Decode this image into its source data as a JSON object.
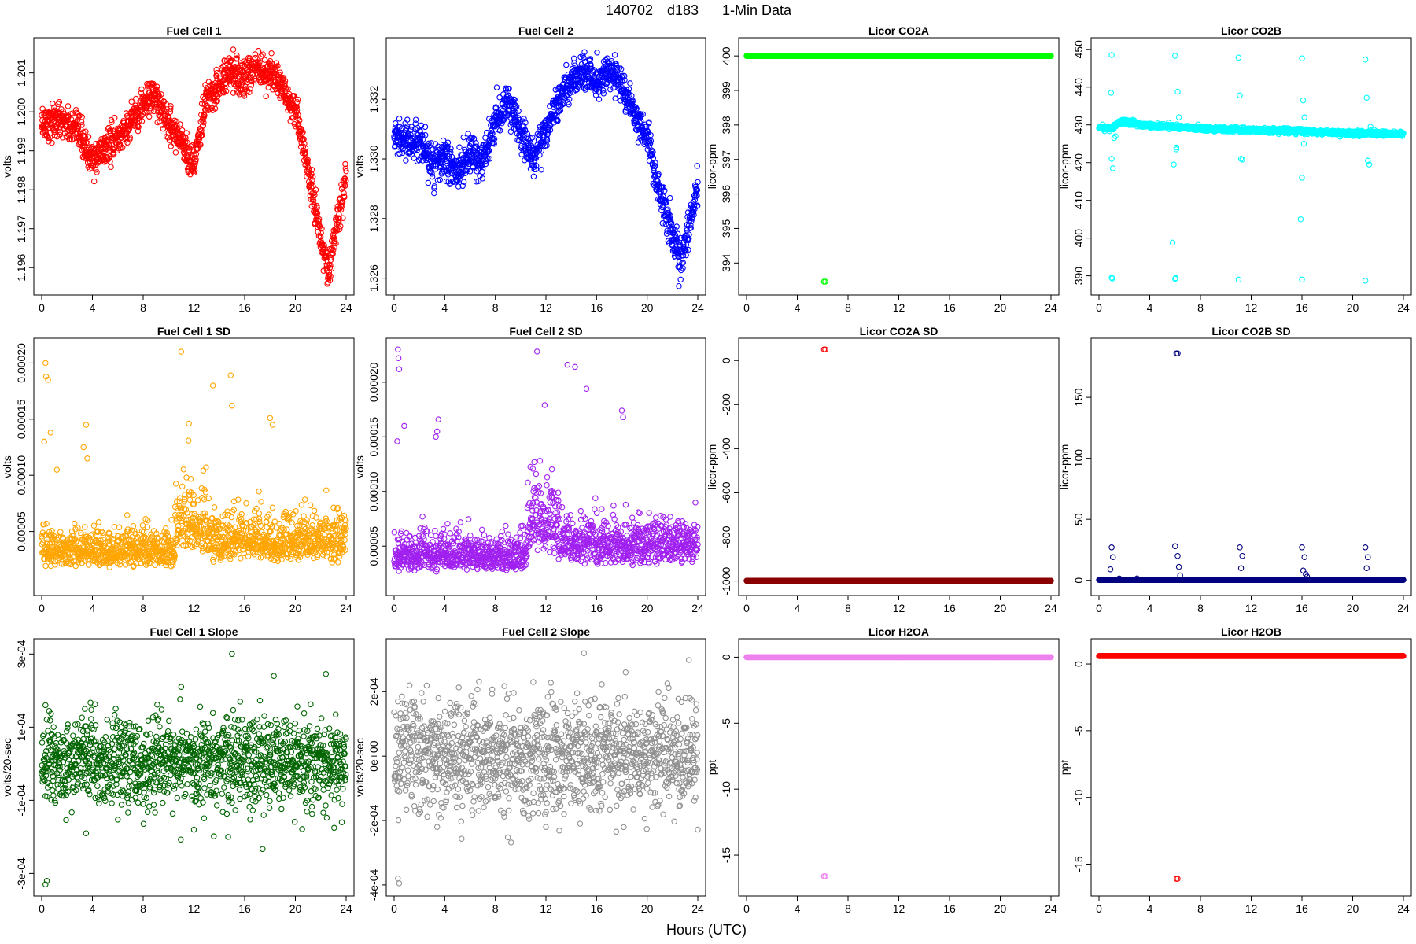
{
  "figure": {
    "title_parts": [
      "140702",
      "d183",
      "1-Min Data"
    ],
    "xlabel": "Hours (UTC)"
  },
  "chart_data": [
    {
      "type": "scatter",
      "title": "Fuel Cell 1",
      "ylabel": "volts",
      "color": "#ff0000",
      "xlim": [
        0,
        24
      ],
      "ylim": [
        1.1955,
        1.2017
      ],
      "xticks": [
        0,
        4,
        8,
        12,
        16,
        20,
        24
      ],
      "xtick_labels": [
        "0",
        "4",
        "8",
        "12",
        "16",
        "20",
        "24"
      ],
      "yticks": [
        1.196,
        1.197,
        1.198,
        1.199,
        1.2,
        1.201
      ],
      "ytick_labels": [
        "1.196",
        "1.197",
        "1.198",
        "1.199",
        "1.200",
        "1.201"
      ],
      "pattern": "walk",
      "trend": [
        [
          0,
          1.1997
        ],
        [
          1.5,
          1.1998
        ],
        [
          3,
          1.1994
        ],
        [
          4,
          1.1987
        ],
        [
          5,
          1.1991
        ],
        [
          6,
          1.1993
        ],
        [
          8,
          1.2002
        ],
        [
          9,
          1.2004
        ],
        [
          10,
          1.1997
        ],
        [
          11,
          1.1993
        ],
        [
          12,
          1.1986
        ],
        [
          13,
          1.2003
        ],
        [
          15,
          1.2011
        ],
        [
          16,
          1.2008
        ],
        [
          17,
          1.2012
        ],
        [
          18,
          1.201
        ],
        [
          19,
          1.2006
        ],
        [
          20,
          1.2
        ],
        [
          21,
          1.1985
        ],
        [
          22,
          1.1968
        ],
        [
          22.6,
          1.1958
        ],
        [
          23.2,
          1.197
        ],
        [
          24,
          1.1983
        ]
      ],
      "noise": 0.00022,
      "outliers": [
        [
          15.1,
          1.2016
        ]
      ]
    },
    {
      "type": "scatter",
      "title": "Fuel Cell 2",
      "ylabel": "volts",
      "color": "#0000ff",
      "xlim": [
        0,
        24
      ],
      "ylim": [
        1.3257,
        1.3338
      ],
      "xticks": [
        0,
        4,
        8,
        12,
        16,
        20,
        24
      ],
      "xtick_labels": [
        "0",
        "4",
        "8",
        "12",
        "16",
        "20",
        "24"
      ],
      "yticks": [
        1.326,
        1.328,
        1.33,
        1.332
      ],
      "ytick_labels": [
        "1.326",
        "1.328",
        "1.330",
        "1.332"
      ],
      "pattern": "walk",
      "trend": [
        [
          0,
          1.3307
        ],
        [
          2,
          1.3305
        ],
        [
          3,
          1.3298
        ],
        [
          4,
          1.33
        ],
        [
          5,
          1.3295
        ],
        [
          6,
          1.3302
        ],
        [
          7,
          1.3298
        ],
        [
          8,
          1.3312
        ],
        [
          9,
          1.332
        ],
        [
          10,
          1.3309
        ],
        [
          11,
          1.33
        ],
        [
          12,
          1.331
        ],
        [
          13,
          1.332
        ],
        [
          14,
          1.3326
        ],
        [
          15,
          1.333
        ],
        [
          16,
          1.3325
        ],
        [
          17,
          1.333
        ],
        [
          18,
          1.3325
        ],
        [
          19,
          1.3315
        ],
        [
          20,
          1.3307
        ],
        [
          21,
          1.3288
        ],
        [
          22,
          1.3275
        ],
        [
          22.7,
          1.3265
        ],
        [
          23.4,
          1.328
        ],
        [
          24,
          1.329
        ]
      ],
      "noise": 0.0003,
      "outliers": []
    },
    {
      "type": "scatter",
      "title": "Licor CO2A",
      "ylabel": "licor-ppm",
      "color": "#00ff00",
      "xlim": [
        0,
        24
      ],
      "ylim": [
        393.3,
        400.3
      ],
      "xticks": [
        0,
        4,
        8,
        12,
        16,
        20,
        24
      ],
      "xtick_labels": [
        "0",
        "4",
        "8",
        "12",
        "16",
        "20",
        "24"
      ],
      "yticks": [
        394,
        395,
        396,
        397,
        398,
        399,
        400
      ],
      "ytick_labels": [
        "394",
        "395",
        "396",
        "397",
        "398",
        "399",
        "400"
      ],
      "pattern": "flat",
      "level": 400,
      "outliers": [
        [
          6.1,
          393.46
        ],
        [
          6.2,
          393.46
        ]
      ]
    },
    {
      "type": "scatter",
      "title": "Licor CO2B",
      "ylabel": "licor-ppm",
      "color": "#00ffff",
      "xlim": [
        0,
        24
      ],
      "ylim": [
        387,
        451
      ],
      "xticks": [
        0,
        4,
        8,
        12,
        16,
        20,
        24
      ],
      "xtick_labels": [
        "0",
        "4",
        "8",
        "12",
        "16",
        "20",
        "24"
      ],
      "yticks": [
        390,
        400,
        410,
        420,
        430,
        440,
        450
      ],
      "ytick_labels": [
        "390",
        "400",
        "410",
        "420",
        "430",
        "440",
        "450"
      ],
      "pattern": "walk",
      "trend": [
        [
          0,
          429.3
        ],
        [
          1,
          429.0
        ],
        [
          1.5,
          430.5
        ],
        [
          2,
          430.8
        ],
        [
          4,
          429.8
        ],
        [
          6,
          429.5
        ],
        [
          8,
          429.0
        ],
        [
          10,
          428.8
        ],
        [
          12,
          428.6
        ],
        [
          14,
          428.5
        ],
        [
          16,
          428.3
        ],
        [
          18,
          428.0
        ],
        [
          20,
          427.8
        ],
        [
          22,
          427.7
        ],
        [
          24,
          427.6
        ]
      ],
      "noise": 0.3,
      "outliers": [
        [
          1.0,
          448.5
        ],
        [
          1.0,
          389.5
        ],
        [
          1.0,
          421
        ],
        [
          1.1,
          418.5
        ],
        [
          1.2,
          426.5
        ],
        [
          1.3,
          427
        ],
        [
          0.95,
          438.5
        ],
        [
          1.05,
          389.3
        ],
        [
          6.0,
          448.3
        ],
        [
          6.0,
          389.2
        ],
        [
          6.2,
          438.8
        ],
        [
          6.1,
          424
        ],
        [
          6.1,
          423.5
        ],
        [
          6.3,
          432
        ],
        [
          5.8,
          398.8
        ],
        [
          5.9,
          419.5
        ],
        [
          6.05,
          389.4
        ],
        [
          11.0,
          447.8
        ],
        [
          11.0,
          389.0
        ],
        [
          11.1,
          437.8
        ],
        [
          11.2,
          421
        ],
        [
          11.3,
          420.8
        ],
        [
          11.4,
          429.5
        ],
        [
          16.0,
          447.6
        ],
        [
          16.0,
          389.0
        ],
        [
          16.1,
          436.5
        ],
        [
          16.2,
          432
        ],
        [
          16.3,
          428.5
        ],
        [
          15.9,
          405
        ],
        [
          16.0,
          416
        ],
        [
          16.15,
          425
        ],
        [
          21.0,
          447.3
        ],
        [
          21.0,
          388.7
        ],
        [
          21.1,
          437.2
        ],
        [
          21.2,
          420.5
        ],
        [
          21.3,
          419.5
        ],
        [
          21.4,
          429.5
        ]
      ]
    },
    {
      "type": "scatter",
      "title": "Fuel Cell 1 SD",
      "ylabel": "volts",
      "color": "#ffa500",
      "xlim": [
        0,
        24
      ],
      "ylim": [
        0.0,
        0.000215
      ],
      "xticks": [
        0,
        4,
        8,
        12,
        16,
        20,
        24
      ],
      "xtick_labels": [
        "0",
        "4",
        "8",
        "12",
        "16",
        "20",
        "24"
      ],
      "yticks": [
        5e-05,
        0.0001,
        0.00015,
        0.0002
      ],
      "ytick_labels": [
        "0.00005",
        "0.00010",
        "0.00015",
        "0.00020"
      ],
      "pattern": "noise",
      "segments": [
        [
          0,
          10.5,
          3.2e-05,
          1.2e-05
        ],
        [
          10.5,
          13,
          5.5e-05,
          2e-05
        ],
        [
          13,
          24,
          4e-05,
          1.5e-05
        ]
      ],
      "outliers": [
        [
          0.3,
          0.0002
        ],
        [
          0.35,
          0.000188
        ],
        [
          0.5,
          0.000185
        ],
        [
          0.2,
          0.00013
        ],
        [
          0.7,
          0.000138
        ],
        [
          1.2,
          0.000105
        ],
        [
          3.5,
          0.000145
        ],
        [
          3.3,
          0.000125
        ],
        [
          3.6,
          0.000115
        ],
        [
          11.0,
          0.00021
        ],
        [
          11.6,
          0.000146
        ],
        [
          13.5,
          0.00018
        ],
        [
          14.9,
          0.000189
        ],
        [
          15.0,
          0.000162
        ],
        [
          18.0,
          0.000151
        ],
        [
          18.2,
          0.000145
        ]
      ]
    },
    {
      "type": "scatter",
      "title": "Fuel Cell 2 SD",
      "ylabel": "volts",
      "color": "#a020f0",
      "xlim": [
        0,
        24
      ],
      "ylim": [
        1.2e-05,
        0.000233
      ],
      "xticks": [
        0,
        4,
        8,
        12,
        16,
        20,
        24
      ],
      "xtick_labels": [
        "0",
        "4",
        "8",
        "12",
        "16",
        "20",
        "24"
      ],
      "yticks": [
        5e-05,
        0.0001,
        0.00015,
        0.0002
      ],
      "ytick_labels": [
        "0.00005",
        "0.00010",
        "0.00015",
        "0.00020"
      ],
      "pattern": "noise",
      "segments": [
        [
          0,
          10.5,
          4.8e-05,
          1.2e-05
        ],
        [
          10.5,
          13,
          7.8e-05,
          2.2e-05
        ],
        [
          13,
          24,
          5.8e-05,
          1.6e-05
        ]
      ],
      "outliers": [
        [
          0.3,
          0.00023
        ],
        [
          0.35,
          0.000222
        ],
        [
          0.4,
          0.000212
        ],
        [
          0.25,
          0.000146
        ],
        [
          0.8,
          0.00016
        ],
        [
          3.5,
          0.000166
        ],
        [
          3.3,
          0.00015
        ],
        [
          3.4,
          0.000155
        ],
        [
          11.3,
          0.000228
        ],
        [
          11.9,
          0.000179
        ],
        [
          13.7,
          0.000216
        ],
        [
          14.3,
          0.000214
        ],
        [
          15.2,
          0.000194
        ],
        [
          18.0,
          0.000174
        ],
        [
          18.1,
          0.000168
        ]
      ]
    },
    {
      "type": "scatter",
      "title": "Licor CO2A SD",
      "ylabel": "licor-ppm",
      "color": "#8b0000",
      "xlim": [
        0,
        24
      ],
      "ylim": [
        -1030,
        65
      ],
      "xticks": [
        0,
        4,
        8,
        12,
        16,
        20,
        24
      ],
      "xtick_labels": [
        "0",
        "4",
        "8",
        "12",
        "16",
        "20",
        "24"
      ],
      "yticks": [
        -1000,
        -800,
        -600,
        -400,
        -200,
        0
      ],
      "ytick_labels": [
        "-1000",
        "-800",
        "-600",
        "-400",
        "-200",
        "0"
      ],
      "pattern": "flat",
      "level": -999,
      "outliers": [
        [
          6.1,
          50
        ],
        [
          6.2,
          50
        ]
      ],
      "outlier_color": "#ff0000"
    },
    {
      "type": "scatter",
      "title": "Licor CO2B SD",
      "ylabel": "licor-ppm",
      "color": "#000080",
      "xlim": [
        0,
        24
      ],
      "ylim": [
        -6,
        192
      ],
      "xticks": [
        0,
        4,
        8,
        12,
        16,
        20,
        24
      ],
      "xtick_labels": [
        "0",
        "4",
        "8",
        "12",
        "16",
        "20",
        "24"
      ],
      "yticks": [
        0,
        50,
        100,
        150
      ],
      "ytick_labels": [
        "0",
        "50",
        "100",
        "150"
      ],
      "pattern": "flat",
      "level": 0.4,
      "outliers": [
        [
          6.1,
          186
        ],
        [
          6.2,
          186
        ],
        [
          1.0,
          27
        ],
        [
          1.1,
          19
        ],
        [
          0.9,
          9
        ],
        [
          6.0,
          28
        ],
        [
          6.2,
          20
        ],
        [
          6.3,
          11
        ],
        [
          6.4,
          4
        ],
        [
          11.1,
          27
        ],
        [
          11.3,
          20
        ],
        [
          11.2,
          10
        ],
        [
          16.0,
          27
        ],
        [
          16.2,
          19
        ],
        [
          16.1,
          8
        ],
        [
          16.3,
          5
        ],
        [
          16.4,
          3
        ],
        [
          21.0,
          27
        ],
        [
          21.2,
          19
        ],
        [
          21.1,
          10
        ],
        [
          1.6,
          1.5
        ],
        [
          3.0,
          1.5
        ]
      ]
    },
    {
      "type": "scatter",
      "title": "Fuel Cell 1 Slope",
      "ylabel": "volts/20-sec",
      "color": "#006400",
      "xlim": [
        0,
        24
      ],
      "ylim": [
        -0.00034,
        0.00032
      ],
      "xticks": [
        0,
        4,
        8,
        12,
        16,
        20,
        24
      ],
      "xtick_labels": [
        "0",
        "4",
        "8",
        "12",
        "16",
        "20",
        "24"
      ],
      "yticks": [
        -0.0003,
        -0.0001,
        0.0001,
        0.0003
      ],
      "ytick_labels": [
        "-3e-04",
        "-1e-04",
        "1e-04",
        "3e-04"
      ],
      "pattern": "noise",
      "segments": [
        [
          0,
          24,
          0.0,
          6e-05
        ]
      ],
      "outliers": [
        [
          0.3,
          -0.00033
        ],
        [
          0.4,
          -0.00032
        ],
        [
          0.3,
          0.00016
        ],
        [
          3.5,
          -0.00019
        ],
        [
          3.4,
          0.00015
        ],
        [
          11.0,
          0.00021
        ],
        [
          15.0,
          0.0003
        ],
        [
          18.3,
          0.00024
        ],
        [
          12.0,
          -0.00018
        ],
        [
          14.7,
          -0.0002
        ]
      ]
    },
    {
      "type": "scatter",
      "title": "Fuel Cell 2 Slope",
      "ylabel": "volts/20-sec",
      "color": "#909090",
      "xlim": [
        0,
        24
      ],
      "ylim": [
        -0.00041,
        0.00034
      ],
      "xticks": [
        0,
        4,
        8,
        12,
        16,
        20,
        24
      ],
      "xtick_labels": [
        "0",
        "4",
        "8",
        "12",
        "16",
        "20",
        "24"
      ],
      "yticks": [
        -0.0004,
        -0.0002,
        0.0,
        0.0002
      ],
      "ytick_labels": [
        "-4e-04",
        "-2e-04",
        "0e+00",
        "2e-04"
      ],
      "pattern": "noise",
      "segments": [
        [
          0,
          24,
          0.0,
          8.5e-05
        ]
      ],
      "outliers": [
        [
          0.3,
          -0.00038
        ],
        [
          0.4,
          -0.000395
        ],
        [
          0.3,
          0.00017
        ],
        [
          3.4,
          -0.00022
        ],
        [
          3.5,
          0.00018
        ],
        [
          11.0,
          0.00023
        ],
        [
          15.0,
          0.00032
        ],
        [
          18.3,
          0.00026
        ],
        [
          12.0,
          -0.00022
        ],
        [
          14.7,
          -0.00021
        ]
      ]
    },
    {
      "type": "scatter",
      "title": "Licor H2OA",
      "ylabel": "ppt",
      "color": "#ee82ee",
      "xlim": [
        0,
        24
      ],
      "ylim": [
        -17.5,
        0.8
      ],
      "xticks": [
        0,
        4,
        8,
        12,
        16,
        20,
        24
      ],
      "xtick_labels": [
        "0",
        "4",
        "8",
        "12",
        "16",
        "20",
        "24"
      ],
      "yticks": [
        -15,
        -10,
        -5,
        0
      ],
      "ytick_labels": [
        "-15",
        "-10",
        "-5",
        "0"
      ],
      "pattern": "flat",
      "level": 0.0,
      "outliers": [
        [
          6.1,
          -16.6
        ],
        [
          6.2,
          -16.6
        ]
      ]
    },
    {
      "type": "scatter",
      "title": "Licor H2OB",
      "ylabel": "ppt",
      "color": "#ff0000",
      "xlim": [
        0,
        24
      ],
      "ylim": [
        -16.8,
        1.3
      ],
      "xticks": [
        0,
        4,
        8,
        12,
        16,
        20,
        24
      ],
      "xtick_labels": [
        "0",
        "4",
        "8",
        "12",
        "16",
        "20",
        "24"
      ],
      "yticks": [
        -15,
        -10,
        -5,
        0
      ],
      "ytick_labels": [
        "-15",
        "-10",
        "-5",
        "0"
      ],
      "pattern": "flat",
      "level": 0.6,
      "outliers": [
        [
          6.1,
          -16.1
        ],
        [
          6.2,
          -16.1
        ]
      ]
    }
  ]
}
